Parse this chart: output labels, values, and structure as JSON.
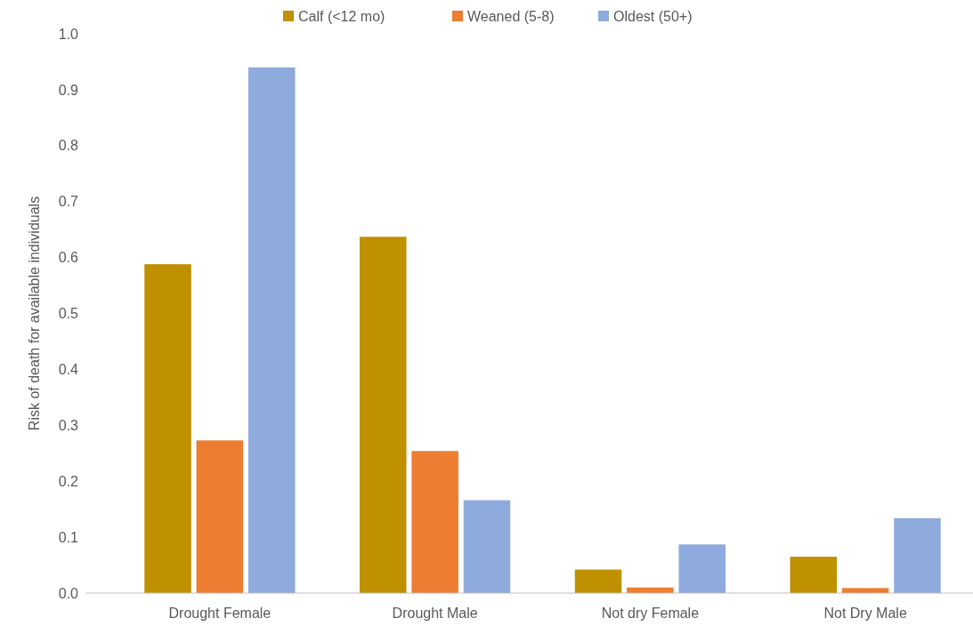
{
  "chart_data": {
    "type": "bar",
    "ylabel": "Risk of death for available individuals",
    "categories": [
      "Drought Female",
      "Drought Male",
      "Not dry Female",
      "Not Dry Male"
    ],
    "series": [
      {
        "name": "Calf (<12 mo)",
        "color": "#bf9000",
        "values": [
          0.588,
          0.637,
          0.042,
          0.065
        ]
      },
      {
        "name": "Weaned (5-8)",
        "color": "#ed7d31",
        "values": [
          0.273,
          0.254,
          0.01,
          0.009
        ]
      },
      {
        "name": "Oldest (50+)",
        "color": "#8faadc",
        "values": [
          0.94,
          0.166,
          0.087,
          0.134
        ]
      }
    ],
    "ylim": [
      0,
      1
    ],
    "yticks": [
      {
        "value": 0,
        "label": "0.0"
      },
      0.1,
      0.2,
      0.3,
      0.4,
      0.5,
      0.6,
      0.7,
      0.8,
      0.9,
      {
        "value": 1,
        "label": "1.0"
      }
    ],
    "grid": false,
    "legend": "top"
  }
}
